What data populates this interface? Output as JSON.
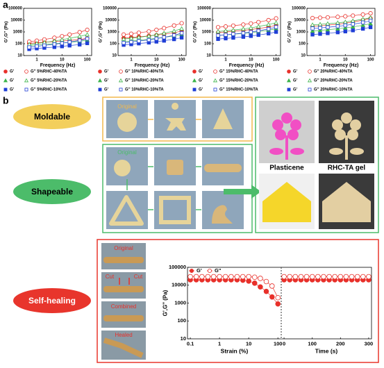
{
  "panel_labels": [
    "a",
    "b"
  ],
  "moldable": {
    "label": "Moldable",
    "original": "Original"
  },
  "shapeable": {
    "label": "Shapeable",
    "original": "Original"
  },
  "comparison": {
    "left": "Plasticene",
    "right": "RHC-TA gel"
  },
  "self_healing": {
    "label": "Self-healing",
    "steps": [
      "Original",
      "Cut",
      "Cut",
      "Combined",
      "Healed"
    ]
  },
  "chart_data": [
    {
      "type": "line",
      "xlabel": "Frequency (Hz)",
      "ylabel": "G',G'' (Pa)",
      "xscale": "log",
      "yscale": "log",
      "legend": "below",
      "xlim": [
        0.3,
        150
      ],
      "ylim": [
        10,
        100000
      ],
      "xticks": [
        1,
        10,
        100
      ],
      "yticks": [
        10,
        100,
        1000,
        10000,
        100000
      ],
      "x": [
        0.5,
        1,
        2,
        5,
        10,
        20,
        50,
        100
      ],
      "series": [
        {
          "name": "G'",
          "color": "#e8302a",
          "marker": "circle",
          "filled": true,
          "values": [
            110,
            120,
            135,
            150,
            170,
            190,
            230,
            280
          ]
        },
        {
          "name": "G'' 5%RHC-40%TA",
          "color": "#e8302a",
          "marker": "circle",
          "filled": false,
          "values": [
            150,
            180,
            230,
            320,
            430,
            600,
            950,
            1500
          ]
        },
        {
          "name": "G'",
          "color": "#3cb44b",
          "marker": "triangle",
          "filled": true,
          "values": [
            70,
            80,
            90,
            100,
            115,
            130,
            160,
            200
          ]
        },
        {
          "name": "G'' 5%RHC-20%TA",
          "color": "#3cb44b",
          "marker": "triangle",
          "filled": false,
          "values": [
            90,
            105,
            130,
            170,
            220,
            290,
            420,
            600
          ]
        },
        {
          "name": "G'",
          "color": "#1f3ed6",
          "marker": "square",
          "filled": true,
          "values": [
            35,
            40,
            45,
            52,
            60,
            70,
            85,
            110
          ]
        },
        {
          "name": "G'' 5%RHC-10%TA",
          "color": "#1f3ed6",
          "marker": "square",
          "filled": false,
          "values": [
            50,
            60,
            72,
            90,
            110,
            140,
            190,
            270
          ]
        }
      ]
    },
    {
      "type": "line",
      "xlabel": "Frequency (Hz)",
      "ylabel": "G',G'' (Pa)",
      "xscale": "log",
      "yscale": "log",
      "legend": "below",
      "xlim": [
        0.3,
        150
      ],
      "ylim": [
        10,
        100000
      ],
      "xticks": [
        1,
        10,
        100
      ],
      "yticks": [
        10,
        100,
        1000,
        10000,
        100000
      ],
      "x": [
        0.5,
        1,
        2,
        5,
        10,
        20,
        50,
        100
      ],
      "series": [
        {
          "name": "G'",
          "color": "#e8302a",
          "marker": "circle",
          "filled": true,
          "values": [
            300,
            340,
            390,
            460,
            540,
            650,
            850,
            1200
          ]
        },
        {
          "name": "G'' 10%RHC-40%TA",
          "color": "#e8302a",
          "marker": "circle",
          "filled": false,
          "values": [
            600,
            700,
            850,
            1100,
            1500,
            2100,
            3500,
            5500
          ]
        },
        {
          "name": "G'",
          "color": "#3cb44b",
          "marker": "triangle",
          "filled": true,
          "values": [
            150,
            170,
            200,
            240,
            290,
            350,
            460,
            620
          ]
        },
        {
          "name": "G'' 10%RHC-20%TA",
          "color": "#3cb44b",
          "marker": "triangle",
          "filled": false,
          "values": [
            250,
            290,
            350,
            450,
            580,
            780,
            1200,
            1900
          ]
        },
        {
          "name": "G'",
          "color": "#1f3ed6",
          "marker": "square",
          "filled": true,
          "values": [
            80,
            90,
            105,
            125,
            150,
            180,
            240,
            330
          ]
        },
        {
          "name": "G'' 10%RHC-10%TA",
          "color": "#1f3ed6",
          "marker": "square",
          "filled": false,
          "values": [
            120,
            140,
            170,
            210,
            270,
            350,
            520,
            800
          ]
        }
      ]
    },
    {
      "type": "line",
      "xlabel": "Frequency (Hz)",
      "ylabel": "G',G'' (Pa)",
      "xscale": "log",
      "yscale": "log",
      "legend": "below",
      "xlim": [
        0.3,
        150
      ],
      "ylim": [
        10,
        100000
      ],
      "xticks": [
        1,
        10,
        100
      ],
      "yticks": [
        10,
        100,
        1000,
        10000,
        100000
      ],
      "x": [
        0.5,
        1,
        2,
        5,
        10,
        20,
        50,
        100
      ],
      "series": [
        {
          "name": "G'",
          "color": "#e8302a",
          "marker": "circle",
          "filled": true,
          "values": [
            900,
            1000,
            1150,
            1350,
            1600,
            1950,
            2600,
            3600
          ]
        },
        {
          "name": "G'' 15%RHC-40%TA",
          "color": "#e8302a",
          "marker": "circle",
          "filled": false,
          "values": [
            2500,
            2900,
            3400,
            4200,
            5200,
            6800,
            10000,
            14000
          ]
        },
        {
          "name": "G'",
          "color": "#3cb44b",
          "marker": "triangle",
          "filled": true,
          "values": [
            500,
            560,
            640,
            750,
            880,
            1050,
            1400,
            1900
          ]
        },
        {
          "name": "G'' 15%RHC-20%TA",
          "color": "#3cb44b",
          "marker": "triangle",
          "filled": false,
          "values": [
            1100,
            1250,
            1450,
            1800,
            2200,
            2900,
            4200,
            6000
          ]
        },
        {
          "name": "G'",
          "color": "#1f3ed6",
          "marker": "square",
          "filled": true,
          "values": [
            250,
            280,
            320,
            380,
            450,
            550,
            730,
            1000
          ]
        },
        {
          "name": "G'' 15%RHC-10%TA",
          "color": "#1f3ed6",
          "marker": "square",
          "filled": false,
          "values": [
            500,
            570,
            660,
            800,
            980,
            1250,
            1800,
            2600
          ]
        }
      ]
    },
    {
      "type": "line",
      "xlabel": "Frequency (Hz)",
      "ylabel": "G',G'' (Pa)",
      "xscale": "log",
      "yscale": "log",
      "legend": "below",
      "xlim": [
        0.3,
        150
      ],
      "ylim": [
        10,
        100000
      ],
      "xticks": [
        1,
        10,
        100
      ],
      "yticks": [
        10,
        100,
        1000,
        10000,
        100000
      ],
      "x": [
        0.5,
        1,
        2,
        5,
        10,
        20,
        50,
        100
      ],
      "series": [
        {
          "name": "G'",
          "color": "#e8302a",
          "marker": "circle",
          "filled": true,
          "values": [
            3000,
            3300,
            3800,
            4500,
            5500,
            7000,
            10000,
            14000
          ]
        },
        {
          "name": "G'' 20%RHC-40%TA",
          "color": "#e8302a",
          "marker": "circle",
          "filled": false,
          "values": [
            15000,
            16000,
            17000,
            19000,
            21000,
            24000,
            30000,
            38000
          ]
        },
        {
          "name": "G'",
          "color": "#3cb44b",
          "marker": "triangle",
          "filled": true,
          "values": [
            1200,
            1350,
            1550,
            1850,
            2200,
            2700,
            3700,
            5000
          ]
        },
        {
          "name": "G'' 20%RHC-20%TA",
          "color": "#3cb44b",
          "marker": "triangle",
          "filled": false,
          "values": [
            4000,
            4400,
            5000,
            5900,
            7000,
            8700,
            12000,
            16000
          ]
        },
        {
          "name": "G'",
          "color": "#1f3ed6",
          "marker": "square",
          "filled": true,
          "values": [
            600,
            680,
            780,
            920,
            1100,
            1350,
            1850,
            2500
          ]
        },
        {
          "name": "G'' 20%RHC-10%TA",
          "color": "#1f3ed6",
          "marker": "square",
          "filled": false,
          "values": [
            2000,
            2200,
            2500,
            3000,
            3600,
            4500,
            6300,
            8800
          ]
        }
      ]
    },
    {
      "type": "line",
      "xlabel": "Strain (%)",
      "ylabel": "G',G'' (Pa)",
      "xscale": "log",
      "yscale": "log",
      "legend": "upper left",
      "xlim": [
        0.08,
        130
      ],
      "ylim": [
        10,
        100000
      ],
      "xticks": [
        0.1,
        1,
        10,
        100
      ],
      "yticks": [
        10,
        100,
        1000,
        10000,
        100000
      ],
      "x": [
        0.1,
        0.16,
        0.25,
        0.4,
        0.63,
        1,
        1.6,
        2.5,
        4,
        6.3,
        10,
        16,
        25,
        40,
        63,
        100
      ],
      "series": [
        {
          "name": "G'",
          "color": "#e8302a",
          "marker": "circle",
          "filled": true,
          "values": [
            20000,
            20000,
            20000,
            20000,
            20000,
            20000,
            20000,
            20000,
            20000,
            19000,
            17000,
            13000,
            8000,
            4500,
            2200,
            900
          ]
        },
        {
          "name": "G''",
          "color": "#e8302a",
          "marker": "circle",
          "filled": false,
          "values": [
            30000,
            30000,
            30000,
            30000,
            30000,
            30000,
            30000,
            30000,
            30000,
            30000,
            30000,
            28000,
            24000,
            16000,
            9000,
            2000
          ]
        }
      ]
    },
    {
      "type": "line",
      "xlabel": "Time (s)",
      "xscale": "linear",
      "yscale": "log",
      "xlim": [
        -10,
        310
      ],
      "ylim": [
        10,
        100000
      ],
      "xticks": [
        0,
        100,
        200,
        300
      ],
      "x": [
        0,
        20,
        40,
        60,
        80,
        100,
        120,
        140,
        160,
        180,
        200,
        220,
        240,
        260,
        280,
        300
      ],
      "series": [
        {
          "color": "#e8302a",
          "marker": "circle",
          "filled": true,
          "values": [
            20000,
            20000,
            20000,
            20000,
            20000,
            20000,
            20000,
            20000,
            20000,
            20000,
            20000,
            20000,
            20000,
            20000,
            20000,
            20000
          ]
        },
        {
          "color": "#e8302a",
          "marker": "circle",
          "filled": false,
          "values": [
            30000,
            30000,
            30000,
            30000,
            30000,
            30000,
            30000,
            30000,
            30000,
            30000,
            30000,
            30000,
            30000,
            30000,
            30000,
            30000
          ]
        }
      ]
    }
  ]
}
